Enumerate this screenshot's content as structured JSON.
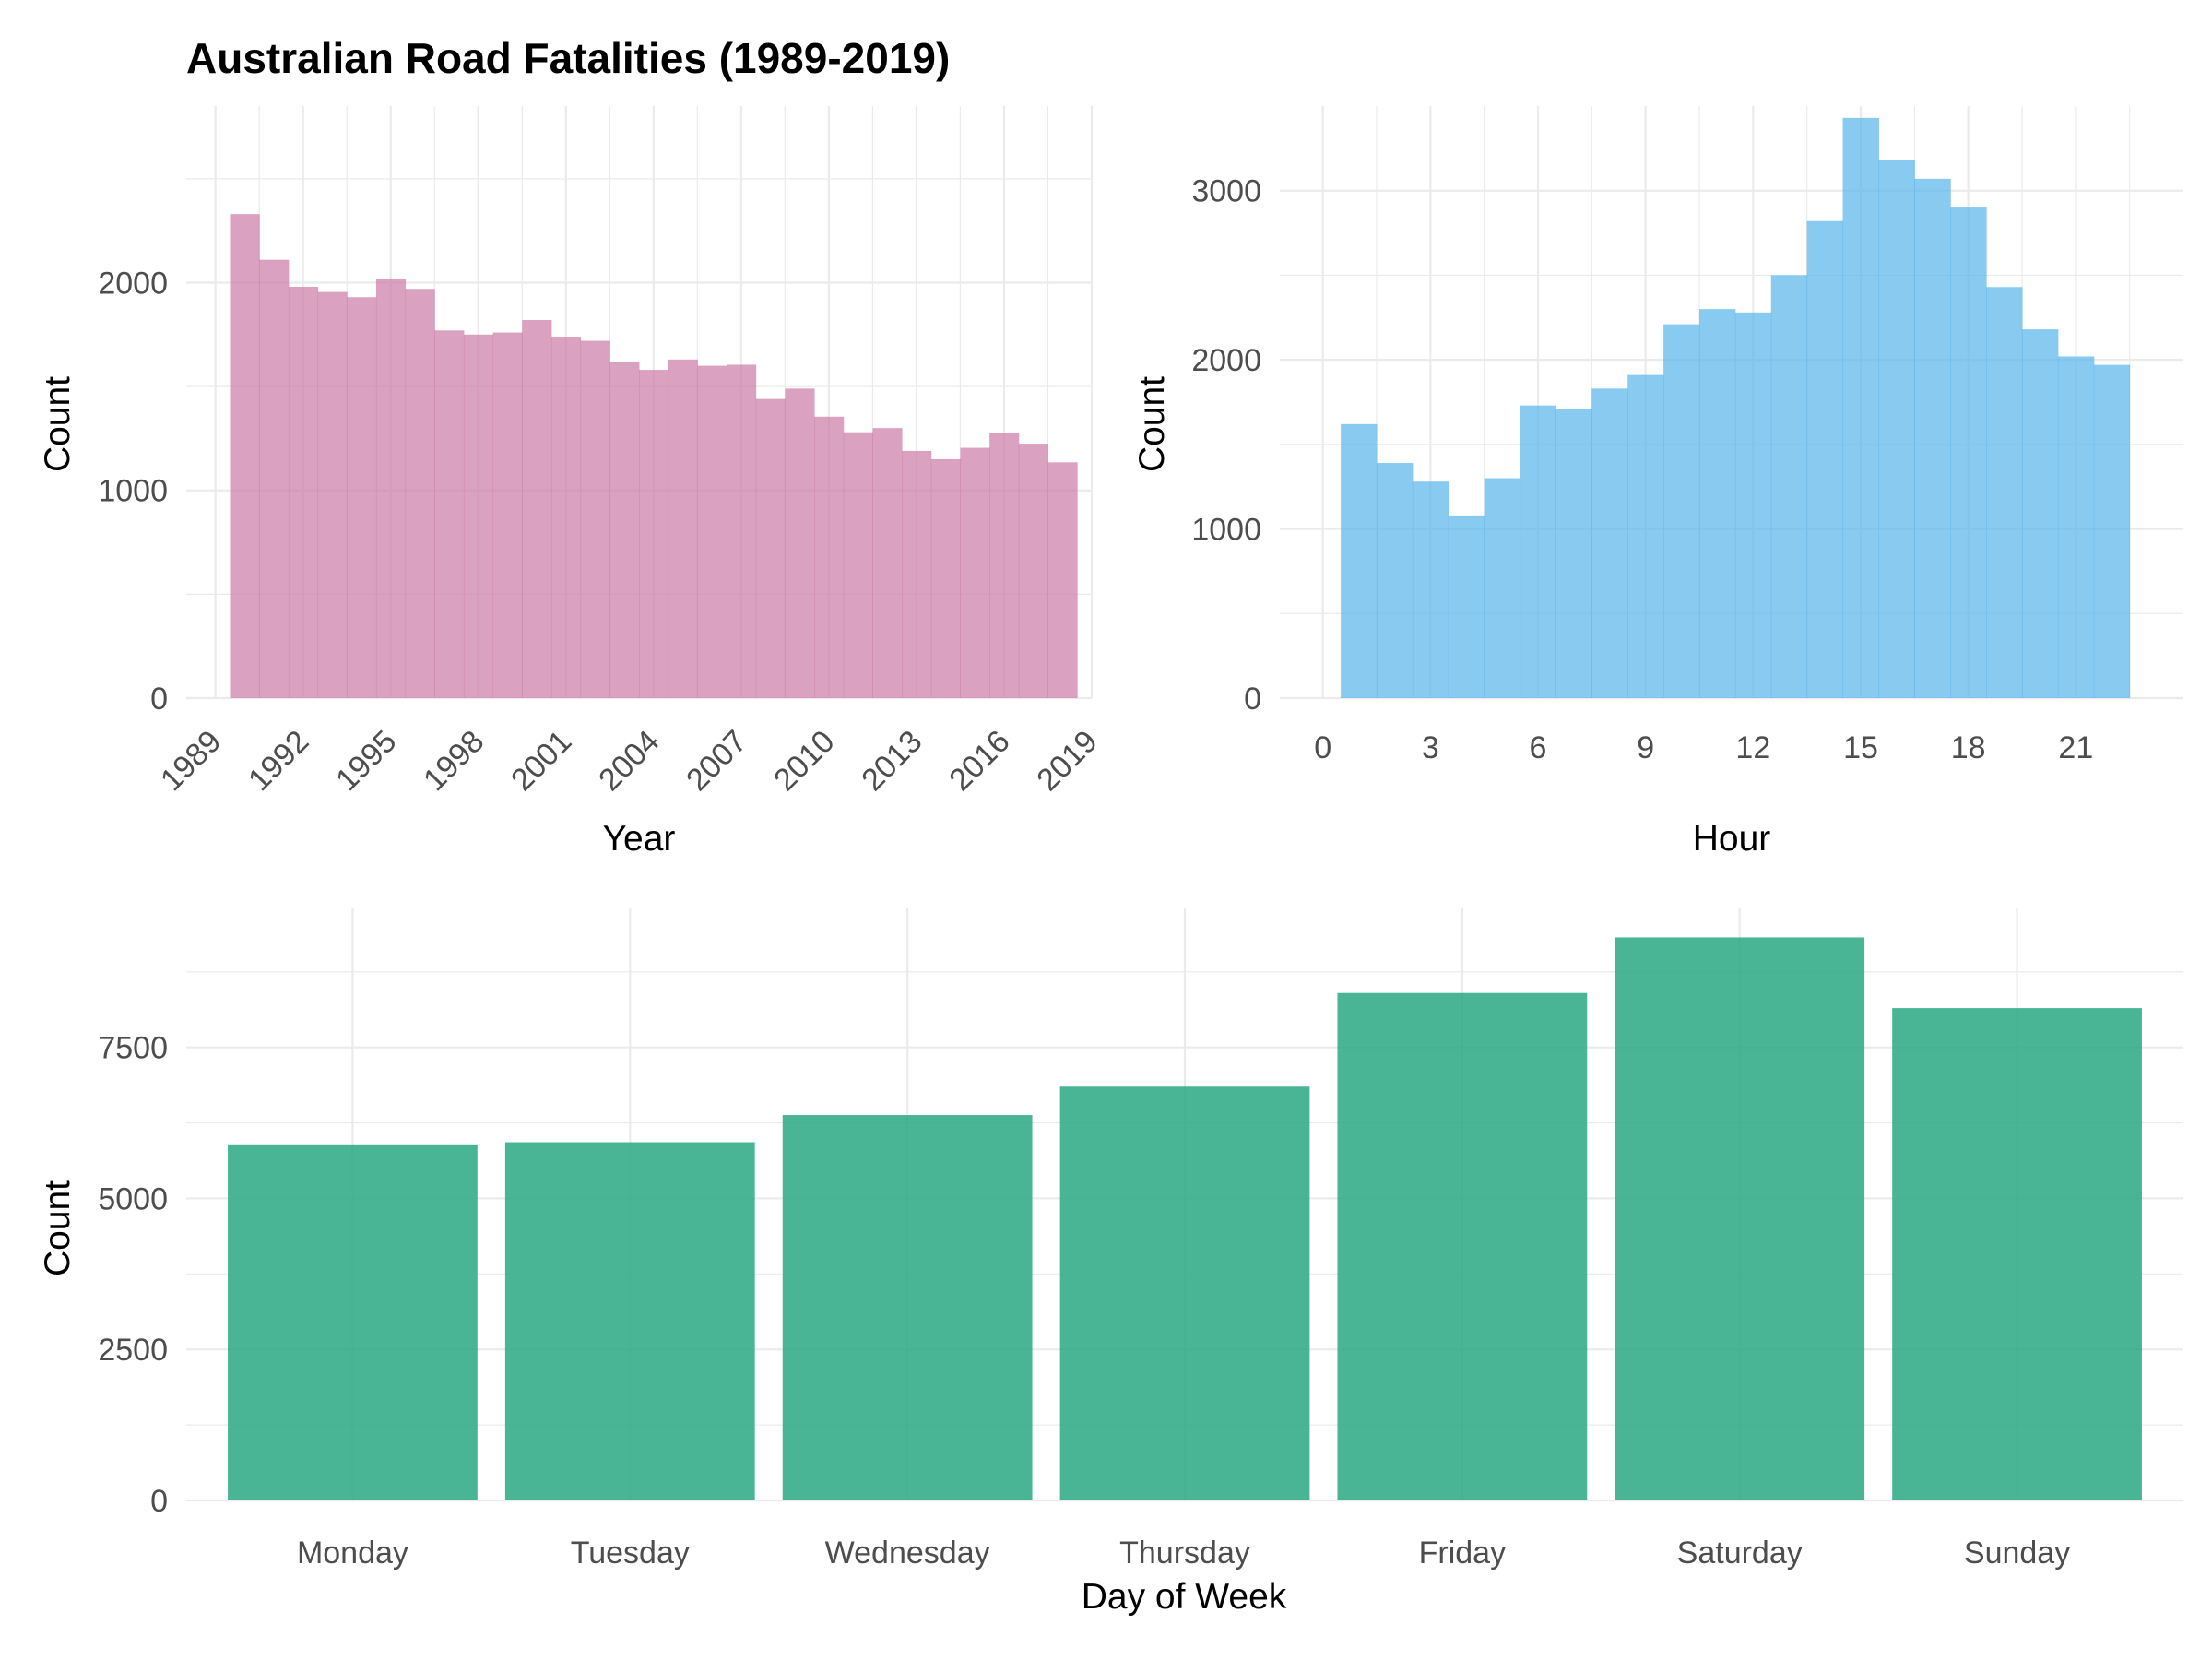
{
  "title": "Australian Road Fatalities (1989-2019)",
  "chart_data": [
    {
      "type": "bar",
      "subtype": "histogram",
      "xlabel": "Year",
      "ylabel": "Count",
      "color": "#cc79a7",
      "xlim": [
        1988,
        2019
      ],
      "ylim": [
        0,
        2850
      ],
      "x_ticks": [
        1989,
        1992,
        1995,
        1998,
        2001,
        2004,
        2007,
        2010,
        2013,
        2016,
        2019
      ],
      "y_ticks": [
        0,
        1000,
        2000
      ],
      "bin_width": 1,
      "bin_start": 1989.5,
      "values": [
        2330,
        2110,
        1980,
        1955,
        1930,
        2020,
        1970,
        1770,
        1750,
        1760,
        1820,
        1740,
        1720,
        1620,
        1580,
        1630,
        1600,
        1605,
        1440,
        1490,
        1355,
        1280,
        1300,
        1190,
        1150,
        1205,
        1275,
        1225,
        1135
      ],
      "grid": true
    },
    {
      "type": "bar",
      "subtype": "histogram",
      "xlabel": "Hour",
      "ylabel": "Count",
      "color": "#56b4e9",
      "xlim": [
        -1.2,
        24
      ],
      "ylim": [
        0,
        3500
      ],
      "x_ticks": [
        0,
        3,
        6,
        9,
        12,
        15,
        18,
        21
      ],
      "y_ticks": [
        0,
        1000,
        2000,
        3000
      ],
      "bin_width": 1,
      "bin_start": 0.5,
      "values": [
        1620,
        1390,
        1280,
        1080,
        1300,
        1730,
        1710,
        1830,
        1910,
        2210,
        2300,
        2280,
        2500,
        2820,
        3430,
        3180,
        3070,
        2900,
        2430,
        2180,
        2020,
        1970
      ],
      "grid": true
    },
    {
      "type": "bar",
      "xlabel": "Day of Week",
      "ylabel": "Count",
      "color": "#2aa882",
      "categories": [
        "Monday",
        "Tuesday",
        "Wednesday",
        "Thursday",
        "Friday",
        "Saturday",
        "Sunday"
      ],
      "values": [
        5880,
        5930,
        6380,
        6850,
        8400,
        9320,
        8150
      ],
      "ylim": [
        0,
        9800
      ],
      "y_ticks": [
        0,
        2500,
        5000,
        7500
      ],
      "grid": true
    }
  ]
}
